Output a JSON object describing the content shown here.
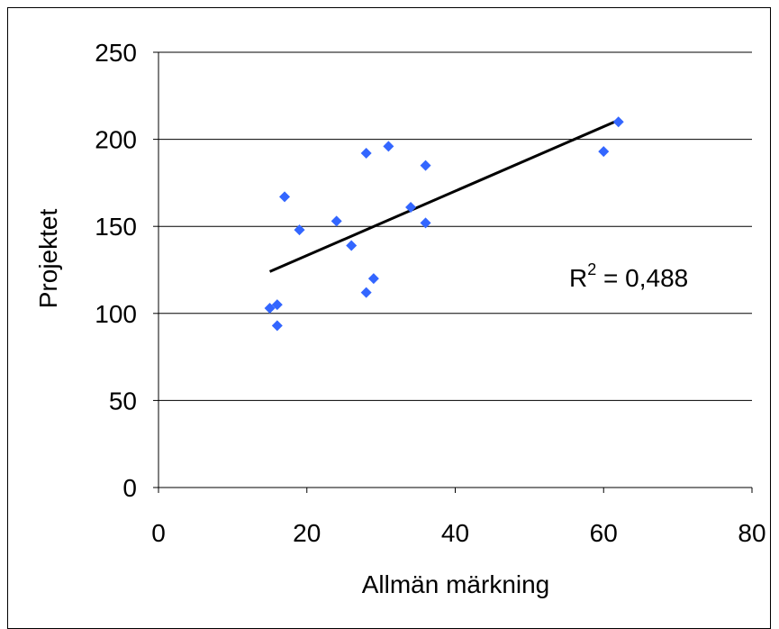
{
  "chart_data": {
    "type": "scatter",
    "xlabel": "Allmän märkning",
    "ylabel": "Projektet",
    "xlim": [
      0,
      80
    ],
    "ylim": [
      0,
      250
    ],
    "x_ticks": [
      0,
      20,
      40,
      60,
      80
    ],
    "y_ticks": [
      0,
      50,
      100,
      150,
      200,
      250
    ],
    "grid": "horizontal",
    "marker_color": "#3366FF",
    "series": [
      {
        "points": [
          {
            "x": 15,
            "y": 103
          },
          {
            "x": 16,
            "y": 105
          },
          {
            "x": 16,
            "y": 93
          },
          {
            "x": 17,
            "y": 167
          },
          {
            "x": 19,
            "y": 148
          },
          {
            "x": 24,
            "y": 153
          },
          {
            "x": 26,
            "y": 139
          },
          {
            "x": 28,
            "y": 192
          },
          {
            "x": 28,
            "y": 112
          },
          {
            "x": 29,
            "y": 120
          },
          {
            "x": 31,
            "y": 196
          },
          {
            "x": 34,
            "y": 161
          },
          {
            "x": 36,
            "y": 185
          },
          {
            "x": 36,
            "y": 152
          },
          {
            "x": 60,
            "y": 193
          },
          {
            "x": 62,
            "y": 210
          }
        ]
      }
    ],
    "trendline": {
      "x": [
        15,
        62
      ],
      "y": [
        124,
        211
      ],
      "color": "#000000"
    },
    "annotation": {
      "r_label": "R",
      "sup": "2",
      "value": " = 0,488"
    }
  }
}
